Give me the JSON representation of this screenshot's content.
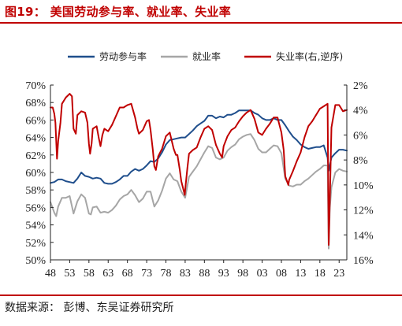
{
  "figure": {
    "title": "图19：  美国劳动参与率、就业率、失业率",
    "source": "数据来源：  彭博、东吴证券研究所"
  },
  "colors": {
    "participation": "#1F4E8C",
    "employment": "#A6A6A6",
    "unemployment": "#C00000",
    "title": "#C00000"
  },
  "chart_data": {
    "type": "line",
    "legend_position": "top",
    "grid": false,
    "x_tick_labels": [
      "48",
      "53",
      "58",
      "63",
      "68",
      "73",
      "78",
      "83",
      "88",
      "93",
      "98",
      "03",
      "08",
      "13",
      "18",
      "23"
    ],
    "x_range": [
      1948,
      2025
    ],
    "left_axis": {
      "range": [
        50,
        70
      ],
      "tick_labels": [
        "70%",
        "68%",
        "66%",
        "64%",
        "62%",
        "60%",
        "58%",
        "56%",
        "54%",
        "52%",
        "50%"
      ]
    },
    "right_axis": {
      "range": [
        2,
        16
      ],
      "inverted": true,
      "tick_labels": [
        "2%",
        "4%",
        "6%",
        "8%",
        "10%",
        "12%",
        "14%",
        "16%"
      ]
    },
    "series": [
      {
        "name": "劳动参与率",
        "axis": "left",
        "x": [
          1948,
          1949,
          1950,
          1951,
          1952,
          1953,
          1954,
          1955,
          1956,
          1957,
          1958,
          1959,
          1960,
          1961,
          1962,
          1963,
          1964,
          1965,
          1966,
          1967,
          1968,
          1969,
          1970,
          1971,
          1972,
          1973,
          1974,
          1975,
          1976,
          1977,
          1978,
          1979,
          1980,
          1981,
          1982,
          1983,
          1984,
          1985,
          1986,
          1987,
          1988,
          1989,
          1990,
          1991,
          1992,
          1993,
          1994,
          1995,
          1996,
          1997,
          1998,
          1999,
          2000,
          2001,
          2002,
          2003,
          2004,
          2005,
          2006,
          2007,
          2008,
          2009,
          2010,
          2011,
          2012,
          2013,
          2014,
          2015,
          2016,
          2017,
          2018,
          2019,
          2020,
          2020.3,
          2021,
          2022,
          2023,
          2024,
          2025
        ],
        "values": [
          58.8,
          58.9,
          59.2,
          59.2,
          59.0,
          58.9,
          58.8,
          59.3,
          60.0,
          59.6,
          59.5,
          59.3,
          59.4,
          59.3,
          58.8,
          58.7,
          58.7,
          58.9,
          59.2,
          59.6,
          59.6,
          60.1,
          60.4,
          60.2,
          60.4,
          60.8,
          61.3,
          61.2,
          61.6,
          62.3,
          63.2,
          63.7,
          63.8,
          63.9,
          64.0,
          64.0,
          64.4,
          64.8,
          65.3,
          65.6,
          65.9,
          66.5,
          66.5,
          66.2,
          66.4,
          66.3,
          66.6,
          66.6,
          66.8,
          67.1,
          67.1,
          67.1,
          67.1,
          66.8,
          66.6,
          66.2,
          66.0,
          66.0,
          66.2,
          66.0,
          66.0,
          65.4,
          64.7,
          64.1,
          63.7,
          63.2,
          62.9,
          62.7,
          62.8,
          62.9,
          62.9,
          63.1,
          61.7,
          60.2,
          61.7,
          62.2,
          62.6,
          62.6,
          62.5
        ]
      },
      {
        "name": "就业率",
        "axis": "left",
        "x": [
          1948,
          1949,
          1949.5,
          1950,
          1951,
          1952,
          1953,
          1954,
          1955,
          1956,
          1957,
          1958,
          1958.5,
          1959,
          1960,
          1961,
          1962,
          1963,
          1964,
          1965,
          1966,
          1967,
          1968,
          1969,
          1970,
          1971,
          1972,
          1973,
          1974,
          1975,
          1976,
          1977,
          1978,
          1979,
          1980,
          1981,
          1982,
          1983,
          1984,
          1985,
          1986,
          1987,
          1988,
          1989,
          1990,
          1991,
          1992,
          1993,
          1994,
          1995,
          1996,
          1997,
          1998,
          1999,
          2000,
          2001,
          2002,
          2003,
          2004,
          2005,
          2006,
          2007,
          2008,
          2009,
          2010,
          2011,
          2012,
          2013,
          2014,
          2015,
          2016,
          2017,
          2018,
          2019,
          2020,
          2020.3,
          2020.6,
          2021,
          2022,
          2023,
          2024,
          2025
        ],
        "values": [
          56.6,
          55.4,
          55.0,
          56.1,
          57.1,
          57.1,
          57.3,
          55.3,
          56.7,
          57.5,
          57.1,
          55.3,
          55.2,
          56.0,
          56.1,
          55.4,
          55.5,
          55.4,
          55.7,
          56.2,
          56.9,
          57.3,
          57.5,
          58.0,
          57.4,
          56.6,
          57.0,
          57.8,
          57.8,
          56.1,
          56.8,
          57.9,
          59.3,
          59.9,
          59.2,
          59.0,
          57.8,
          57.1,
          59.5,
          60.1,
          60.7,
          61.5,
          62.3,
          63.0,
          62.8,
          61.7,
          61.5,
          61.7,
          62.5,
          62.9,
          63.2,
          63.8,
          64.1,
          64.3,
          64.4,
          63.7,
          62.7,
          62.3,
          62.3,
          62.7,
          63.1,
          63.0,
          62.2,
          59.3,
          58.5,
          58.4,
          58.6,
          58.6,
          59.0,
          59.3,
          59.7,
          60.1,
          60.4,
          60.8,
          60.8,
          51.3,
          56.0,
          58.3,
          60.0,
          60.4,
          60.2,
          60.1
        ]
      },
      {
        "name": "失业率(右,逆序)",
        "axis": "right",
        "x": [
          1948,
          1948.6,
          1949,
          1949.3,
          1949.7,
          1950,
          1950.6,
          1951,
          1952,
          1953,
          1953.6,
          1954,
          1954.6,
          1955,
          1956,
          1957,
          1957.6,
          1958,
          1958.3,
          1958.7,
          1959,
          1960,
          1960.6,
          1961,
          1961.5,
          1962,
          1963,
          1964,
          1965,
          1966,
          1967,
          1968,
          1969,
          1970,
          1970.6,
          1971,
          1972,
          1973,
          1973.6,
          1974,
          1974.6,
          1975,
          1975.4,
          1976,
          1977,
          1978,
          1979,
          1980,
          1980.6,
          1981,
          1981.6,
          1982,
          1982.9,
          1983,
          1983.6,
          1984,
          1985,
          1986,
          1987,
          1988,
          1989,
          1990,
          1991,
          1992,
          1992.6,
          1993,
          1994,
          1995,
          1996,
          1997,
          1998,
          1999,
          2000,
          2001,
          2002,
          2003,
          2004,
          2005,
          2006,
          2007,
          2008,
          2008.6,
          2009,
          2009.8,
          2010,
          2011,
          2012,
          2013,
          2014,
          2015,
          2016,
          2017,
          2018,
          2019,
          2020,
          2020.3,
          2020.6,
          2021,
          2022,
          2023,
          2024,
          2025
        ],
        "values": [
          3.8,
          3.8,
          4.3,
          5.0,
          7.9,
          6.5,
          5.0,
          3.5,
          3.0,
          2.7,
          2.9,
          5.5,
          5.9,
          4.4,
          4.1,
          4.2,
          5.0,
          6.7,
          7.5,
          6.7,
          5.5,
          5.3,
          6.3,
          6.9,
          6.0,
          5.5,
          5.7,
          5.2,
          4.5,
          3.8,
          3.8,
          3.6,
          3.5,
          4.6,
          5.5,
          5.9,
          5.6,
          4.9,
          4.8,
          5.6,
          7.2,
          8.5,
          8.8,
          7.7,
          7.1,
          6.1,
          5.8,
          7.1,
          7.6,
          7.6,
          8.8,
          9.7,
          10.8,
          10.4,
          8.6,
          7.5,
          7.2,
          7.0,
          6.2,
          5.5,
          5.3,
          5.6,
          6.8,
          7.5,
          7.8,
          6.9,
          6.1,
          5.6,
          5.4,
          4.9,
          4.5,
          4.2,
          4.0,
          4.7,
          5.8,
          6.0,
          5.5,
          5.1,
          4.6,
          4.6,
          5.8,
          7.2,
          9.3,
          10.0,
          9.6,
          8.9,
          8.1,
          7.4,
          6.2,
          5.3,
          4.9,
          4.4,
          3.9,
          3.7,
          3.5,
          14.8,
          11.0,
          5.4,
          3.6,
          3.6,
          4.1,
          4.0
        ]
      }
    ]
  }
}
